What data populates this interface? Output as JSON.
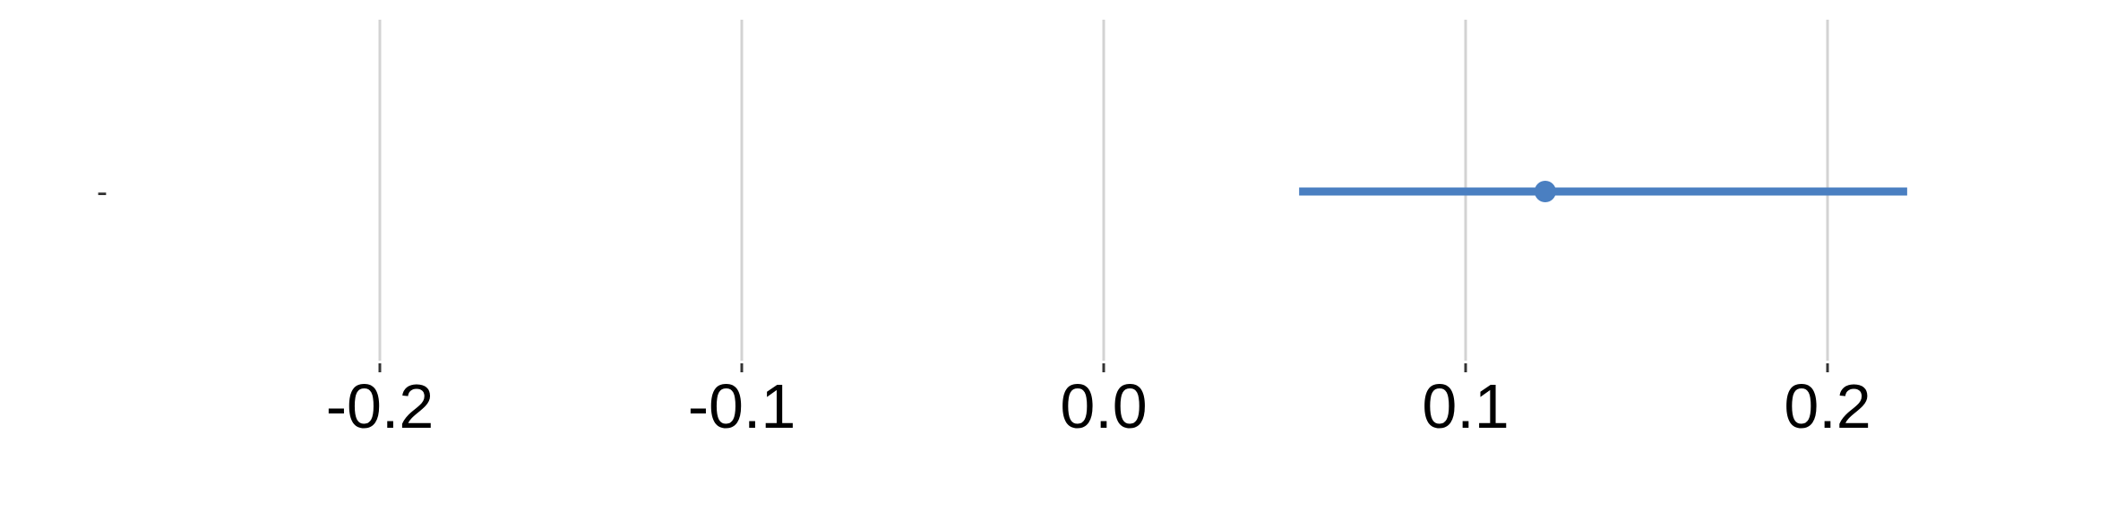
{
  "chart_data": {
    "type": "scatter",
    "title": "",
    "xlabel": "",
    "ylabel": "",
    "xlim": [
      -0.3,
      0.25
    ],
    "xticks": [
      -0.2,
      -0.1,
      0.0,
      0.1,
      0.2
    ],
    "xtick_labels": [
      "-0.2",
      "-0.1",
      "0.0",
      "0.1",
      "0.2"
    ],
    "categories": [
      "-"
    ],
    "series": [
      {
        "points": [
          {
            "category": "-",
            "estimate": 0.122,
            "ci_low": 0.054,
            "ci_high": 0.222
          }
        ]
      }
    ],
    "grid": "vertical",
    "legend": "none",
    "colors": {
      "point": "#4a7fc1",
      "interval": "#4a7fc1",
      "grid": "#d3d3d3",
      "tick": "#333333",
      "text": "#000000"
    }
  }
}
